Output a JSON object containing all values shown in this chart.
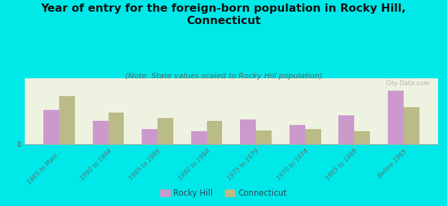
{
  "title": "Year of entry for the foreign-born population in Rocky Hill,\nConnecticut",
  "subtitle": "(Note: State values scaled to Rocky Hill population)",
  "categories": [
    "1995 to Marc...",
    "1990 to 1994",
    "1985 to 1989",
    "1980 to 1984",
    "1975 to 1979",
    "1970 to 1974",
    "1965 to 1969",
    "Before 1965"
  ],
  "rocky_hill": [
    42,
    28,
    18,
    16,
    30,
    23,
    35,
    65
  ],
  "connecticut": [
    58,
    38,
    32,
    28,
    17,
    18,
    16,
    45
  ],
  "rocky_hill_color": "#cc99cc",
  "connecticut_color": "#bbbb88",
  "background_color": "#00e8e8",
  "chart_bg": "#eef2e0",
  "title_fontsize": 11.5,
  "subtitle_fontsize": 8,
  "watermark": "City-Data.com",
  "legend_rocky_hill": "Rocky Hill",
  "legend_connecticut": "Connecticut"
}
